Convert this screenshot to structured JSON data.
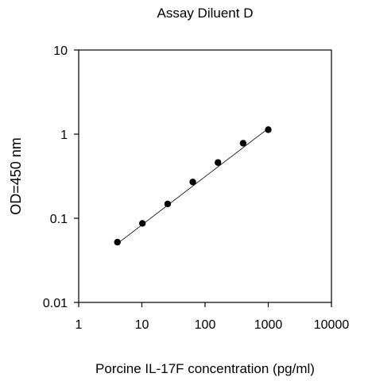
{
  "chart_data": {
    "type": "scatter",
    "title": "Assay Diluent D",
    "xlabel": "Porcine IL-17F concentration (pg/ml)",
    "ylabel": "OD=450 nm",
    "x_scale": "log",
    "y_scale": "log",
    "xlim": [
      1,
      10000
    ],
    "ylim": [
      0.01,
      10
    ],
    "x_ticks": [
      "1",
      "10",
      "100",
      "1000",
      "10000"
    ],
    "y_ticks": [
      "0.01",
      "0.1",
      "1",
      "10"
    ],
    "grid": false,
    "legend": "none",
    "series": [
      {
        "x": [
          4.1,
          10.2,
          25.6,
          64,
          160,
          400,
          1000
        ],
        "y": [
          0.052,
          0.087,
          0.148,
          0.27,
          0.46,
          0.78,
          1.13
        ],
        "marker": "filled-circle",
        "color": "#000000"
      }
    ],
    "trendline": {
      "x": [
        4.1,
        1000
      ],
      "y": [
        0.05,
        1.17
      ]
    }
  }
}
